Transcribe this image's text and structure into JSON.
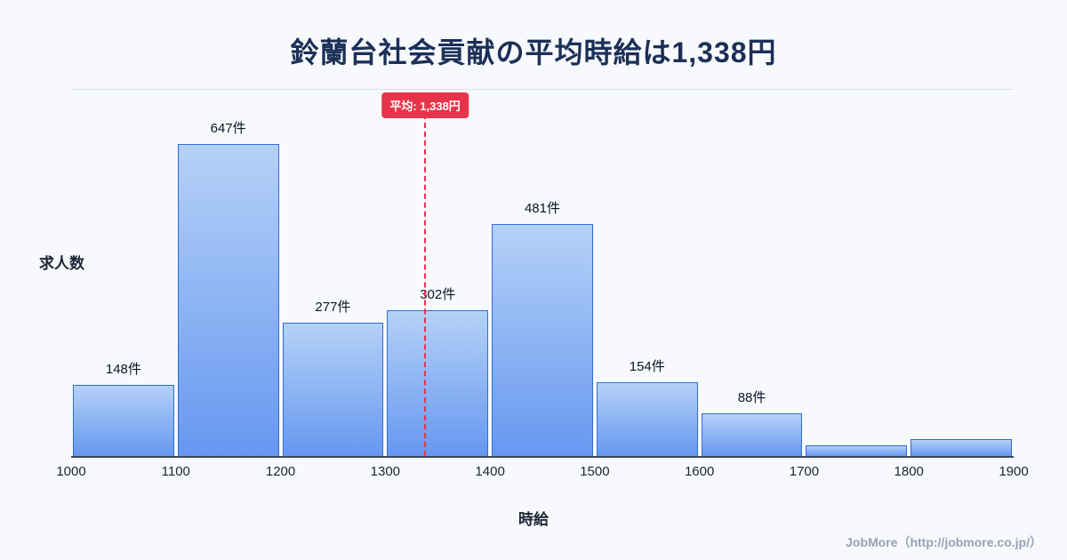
{
  "title": "鈴蘭台社会貢献の平均時給は1,338円",
  "ylabel": "求人数",
  "xlabel": "時給",
  "footer": "JobMore（http://jobmore.co.jp/）",
  "colors": {
    "background": "#f7f9fd",
    "title": "#1c3057",
    "bar_fill_top": "#b5d1f7",
    "bar_fill_bottom": "#6697f0",
    "bar_border": "#2e6fd9",
    "mean_accent_red": "#e8344a",
    "footer_gray": "#99a1b3"
  },
  "chart_data": {
    "type": "bar",
    "title": "鈴蘭台社会貢献の平均時給は1,338円",
    "xlabel": "時給",
    "ylabel": "求人数",
    "x_ticks": [
      1000,
      1100,
      1200,
      1300,
      1400,
      1500,
      1600,
      1700,
      1800,
      1900
    ],
    "bins": [
      [
        1000,
        1100
      ],
      [
        1100,
        1200
      ],
      [
        1200,
        1300
      ],
      [
        1300,
        1400
      ],
      [
        1400,
        1500
      ],
      [
        1500,
        1600
      ],
      [
        1600,
        1700
      ],
      [
        1700,
        1800
      ],
      [
        1800,
        1900
      ]
    ],
    "values": [
      148,
      647,
      277,
      302,
      481,
      154,
      88,
      22,
      35
    ],
    "bar_labels": [
      "148件",
      "647件",
      "277件",
      "302件",
      "481件",
      "154件",
      "88件",
      "",
      ""
    ],
    "mean": 1338,
    "mean_label": "平均: 1,338円",
    "ylim": [
      0,
      760
    ],
    "grid": false,
    "legend": false
  }
}
